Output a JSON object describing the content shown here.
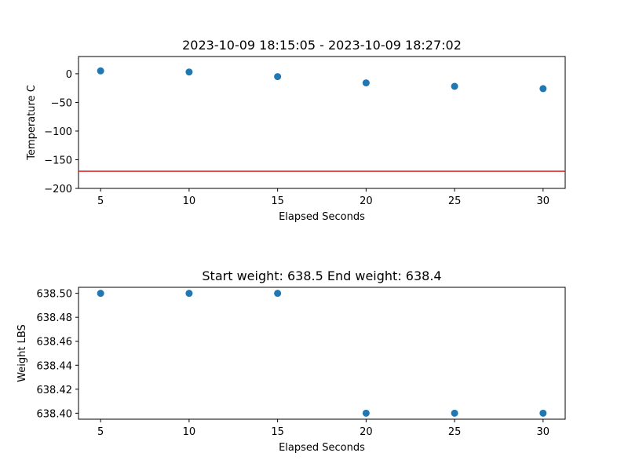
{
  "chart_data": [
    {
      "type": "scatter",
      "title": "2023-10-09 18:15:05 - 2023-10-09 18:27:02",
      "xlabel": "Elapsed Seconds",
      "ylabel": "Temperature C",
      "x": [
        5,
        10,
        15,
        20,
        25,
        30
      ],
      "y": [
        5,
        3,
        -5,
        -16,
        -22,
        -26
      ],
      "xlim": [
        3.75,
        31.25
      ],
      "ylim": [
        -200,
        30
      ],
      "xticks": [
        5,
        10,
        15,
        20,
        25,
        30
      ],
      "yticks": [
        0,
        -50,
        -100,
        -150,
        -200
      ],
      "ytick_labels": [
        "0",
        "−50",
        "−100",
        "−150",
        "−200"
      ],
      "hline": -170,
      "point_color": "#1f77b4",
      "hline_color": "#d62728",
      "grid": false
    },
    {
      "type": "scatter",
      "title": "Start weight: 638.5 End weight: 638.4",
      "xlabel": "Elapsed Seconds",
      "ylabel": "Weight LBS",
      "x": [
        5,
        10,
        15,
        20,
        25,
        30
      ],
      "y": [
        638.5,
        638.5,
        638.5,
        638.4,
        638.4,
        638.4
      ],
      "xlim": [
        3.75,
        31.25
      ],
      "ylim": [
        638.395,
        638.505
      ],
      "xticks": [
        5,
        10,
        15,
        20,
        25,
        30
      ],
      "yticks": [
        638.5,
        638.48,
        638.46,
        638.44,
        638.42,
        638.4
      ],
      "ytick_labels": [
        "638.50",
        "638.48",
        "638.46",
        "638.44",
        "638.42",
        "638.40"
      ],
      "point_color": "#1f77b4",
      "grid": false
    }
  ]
}
